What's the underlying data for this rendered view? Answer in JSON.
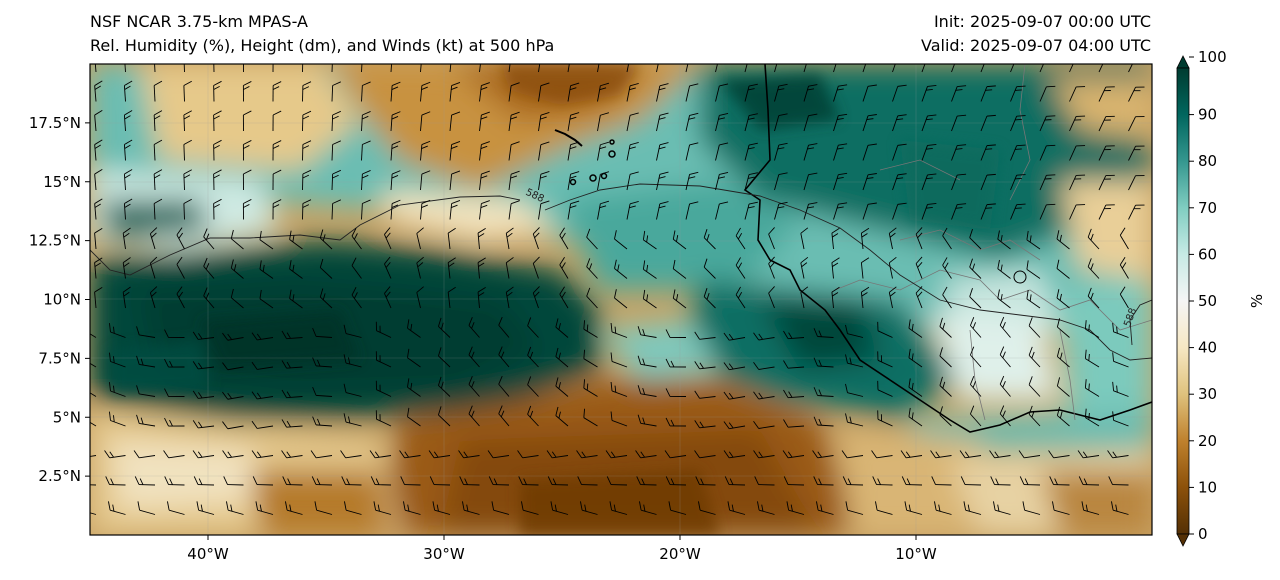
{
  "titles": {
    "left_line1": "NSF NCAR 3.75-km MPAS-A",
    "left_line2": "Rel. Humidity (%), Height (dm), and Winds (kt) at 500 hPa",
    "right_line1": "Init: 2025-09-07 00:00 UTC",
    "right_line2": "Valid: 2025-09-07 04:00 UTC"
  },
  "map": {
    "lon_range": [
      -45,
      0
    ],
    "lat_range": [
      0,
      20
    ],
    "lat_ticks": [
      {
        "value": 17.5,
        "label": "17.5°N"
      },
      {
        "value": 15,
        "label": "15°N"
      },
      {
        "value": 12.5,
        "label": "12.5°N"
      },
      {
        "value": 10,
        "label": "10°N"
      },
      {
        "value": 7.5,
        "label": "7.5°N"
      },
      {
        "value": 5,
        "label": "5°N"
      },
      {
        "value": 2.5,
        "label": "2.5°N"
      }
    ],
    "lon_ticks": [
      {
        "value": -40,
        "label": "40°W"
      },
      {
        "value": -30,
        "label": "30°W"
      },
      {
        "value": -20,
        "label": "20°W"
      },
      {
        "value": -10,
        "label": "10°W"
      }
    ],
    "contour_labels": [
      {
        "text": "588",
        "lon": -26.2,
        "lat": 14.3,
        "angle": 25
      },
      {
        "text": "588",
        "lon": -0.8,
        "lat": 9.2,
        "angle": -70
      }
    ]
  },
  "colorbar": {
    "label": "%",
    "ticks": [
      0,
      10,
      20,
      30,
      40,
      50,
      60,
      70,
      80,
      90,
      100
    ],
    "colors": [
      "#543005",
      "#8c510a",
      "#bf812d",
      "#dfc27d",
      "#f6e8c3",
      "#f5f5f5",
      "#c7eae5",
      "#80cdc1",
      "#35978f",
      "#01665e",
      "#003c30"
    ]
  }
}
